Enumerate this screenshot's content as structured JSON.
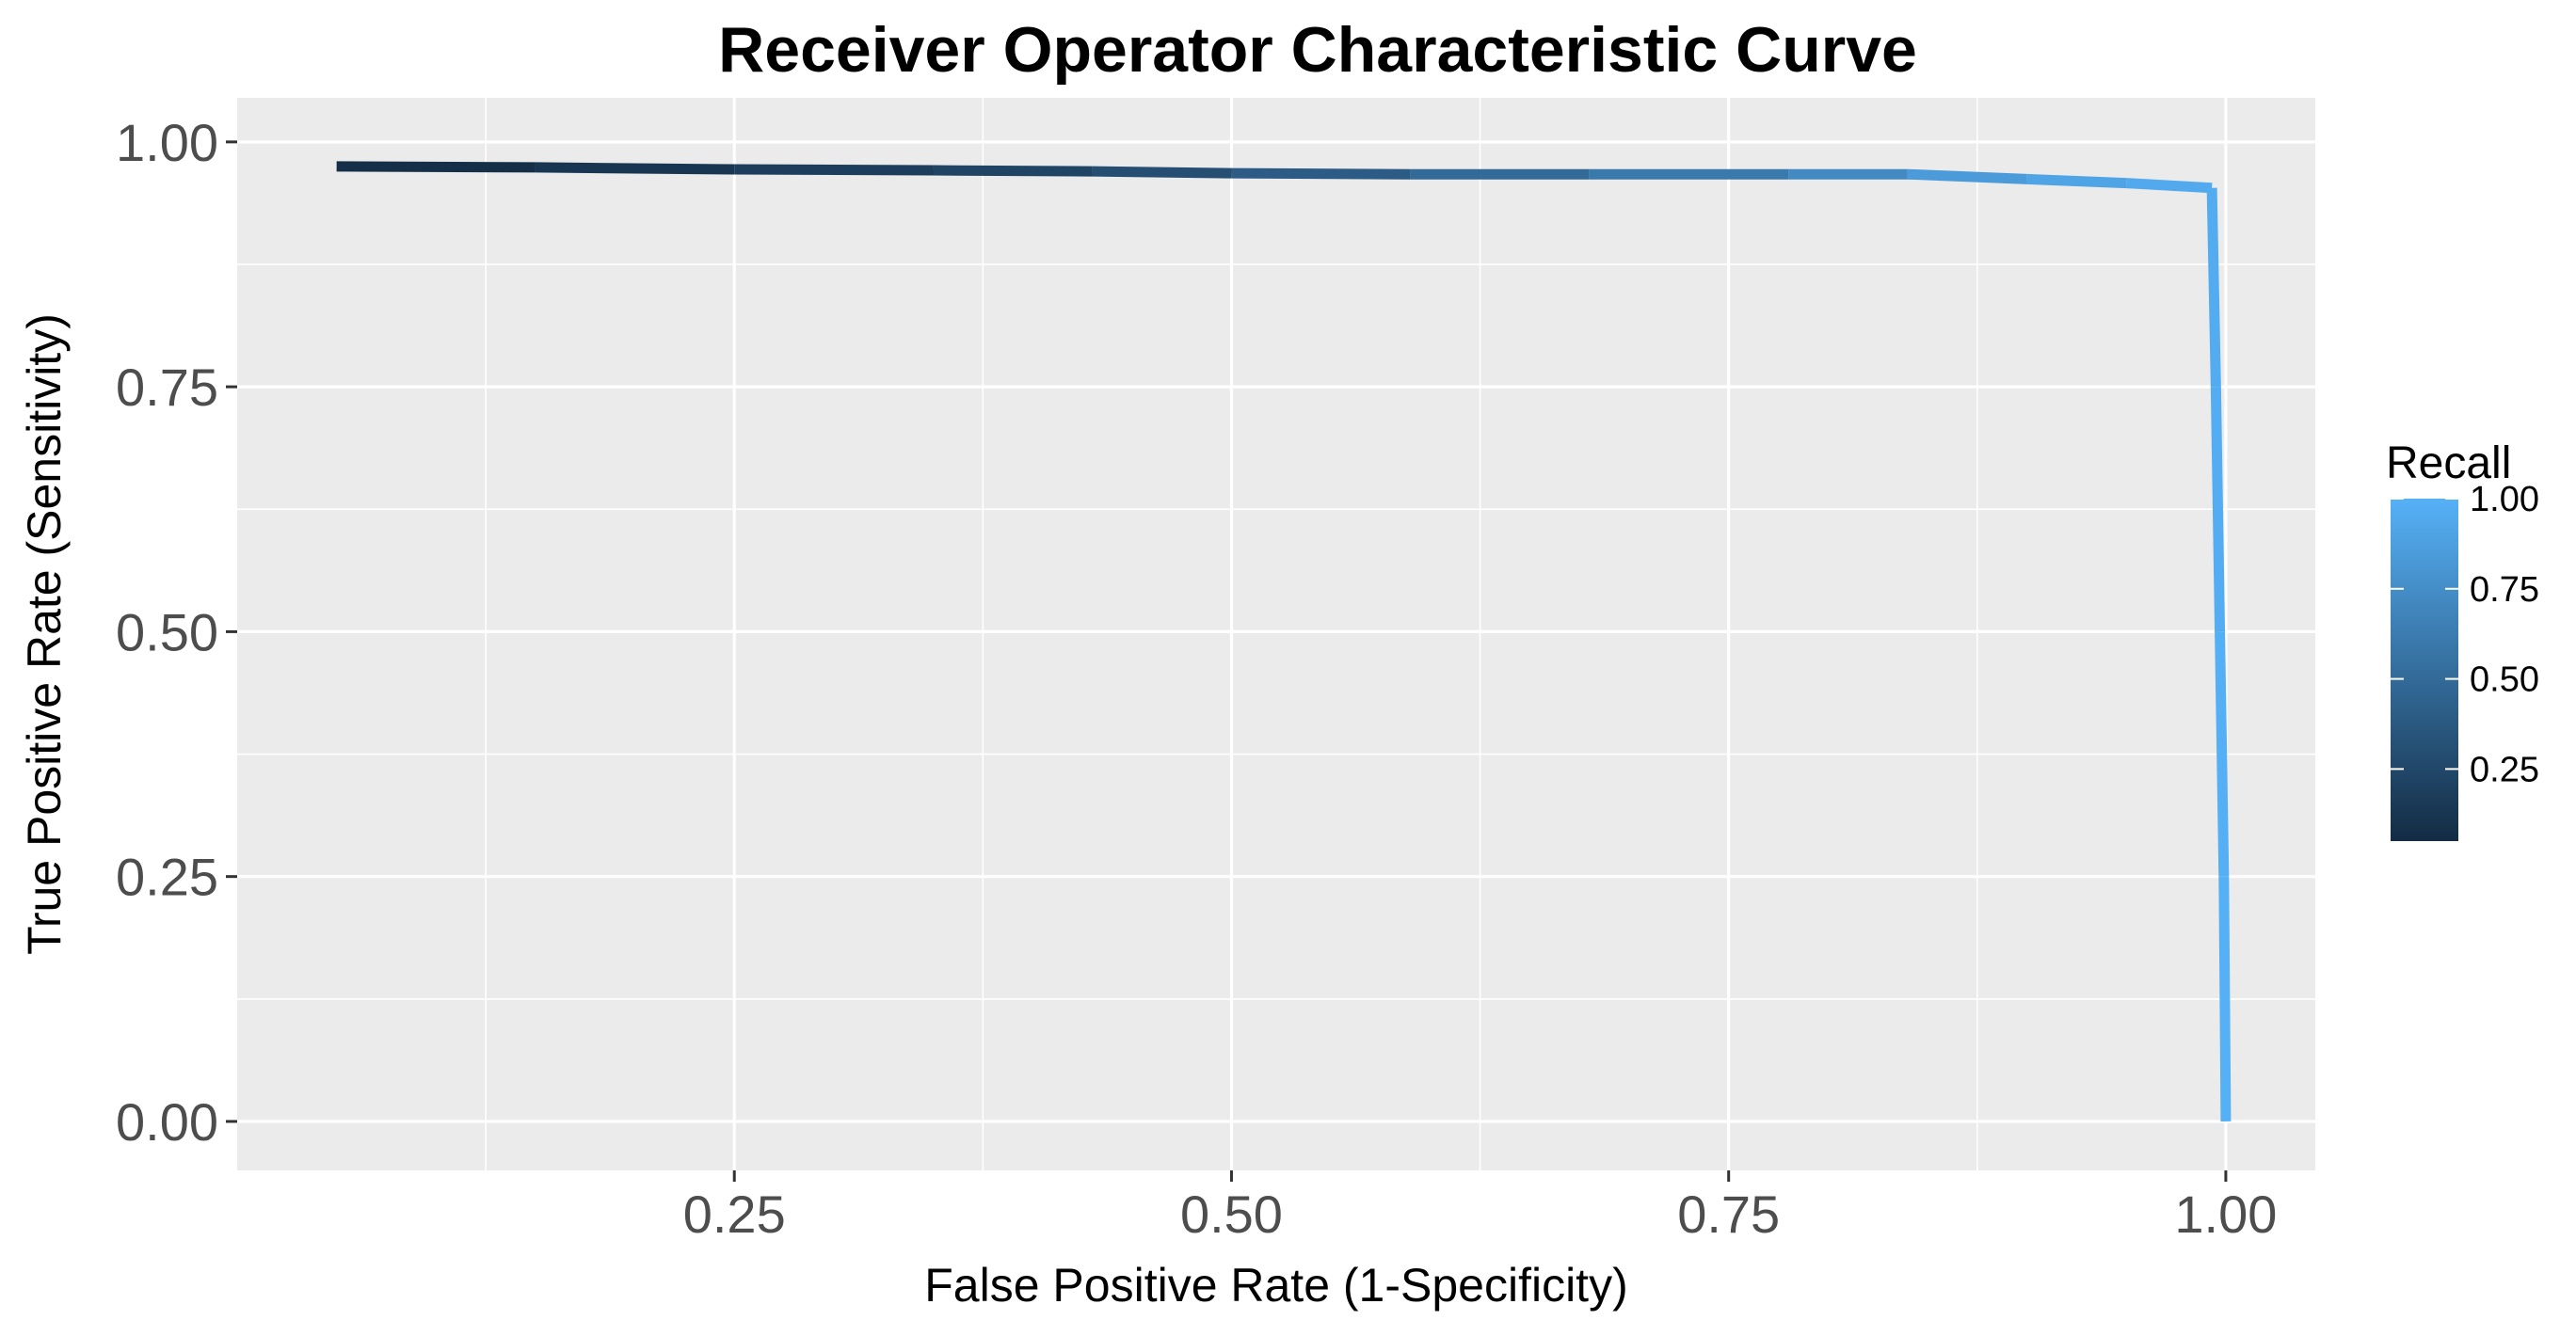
{
  "chart_data": {
    "type": "line",
    "title": "Receiver Operator Characteristic Curve",
    "xlabel": "False Positive Rate (1-Specificity)",
    "ylabel": "True Positive Rate (Sensitivity)",
    "xlim": [
      0.0,
      1.045
    ],
    "ylim": [
      -0.05,
      1.045
    ],
    "x_ticks": [
      0.25,
      0.5,
      0.75,
      1.0
    ],
    "x_tick_labels": [
      "0.25",
      "0.50",
      "0.75",
      "1.00"
    ],
    "y_ticks": [
      0.0,
      0.25,
      0.5,
      0.75,
      1.0
    ],
    "y_tick_labels": [
      "0.00",
      "0.25",
      "0.50",
      "0.75",
      "1.00"
    ],
    "grid": true,
    "legend": {
      "title": "Recall",
      "placement": "right",
      "type": "colorbar",
      "range": [
        0.05,
        1.0
      ],
      "ticks": [
        0.25,
        0.5,
        0.75,
        1.0
      ],
      "tick_labels": [
        "0.25",
        "0.50",
        "0.75",
        "1.00"
      ],
      "low_color": "#132B43",
      "high_color": "#56B1F7"
    },
    "colors": {
      "panel_background": "#EBEBEB",
      "grid_major": "#FFFFFF",
      "axis_text": "#4D4D4D"
    },
    "series": [
      {
        "points": [
          {
            "x": 0.05,
            "y": 0.975,
            "recall": 0.05
          },
          {
            "x": 0.15,
            "y": 0.974,
            "recall": 0.1
          },
          {
            "x": 0.25,
            "y": 0.972,
            "recall": 0.15
          },
          {
            "x": 0.35,
            "y": 0.971,
            "recall": 0.2
          },
          {
            "x": 0.43,
            "y": 0.97,
            "recall": 0.25
          },
          {
            "x": 0.5,
            "y": 0.968,
            "recall": 0.35
          },
          {
            "x": 0.59,
            "y": 0.967,
            "recall": 0.45
          },
          {
            "x": 0.68,
            "y": 0.967,
            "recall": 0.55
          },
          {
            "x": 0.78,
            "y": 0.967,
            "recall": 0.65
          },
          {
            "x": 0.84,
            "y": 0.967,
            "recall": 0.8
          },
          {
            "x": 0.9,
            "y": 0.962,
            "recall": 0.88
          },
          {
            "x": 0.95,
            "y": 0.958,
            "recall": 0.93
          },
          {
            "x": 0.993,
            "y": 0.953,
            "recall": 0.96
          },
          {
            "x": 0.995,
            "y": 0.75,
            "recall": 0.97
          },
          {
            "x": 0.997,
            "y": 0.5,
            "recall": 0.98
          },
          {
            "x": 0.999,
            "y": 0.25,
            "recall": 0.99
          },
          {
            "x": 1.0,
            "y": 0.0,
            "recall": 1.0
          }
        ]
      }
    ]
  }
}
